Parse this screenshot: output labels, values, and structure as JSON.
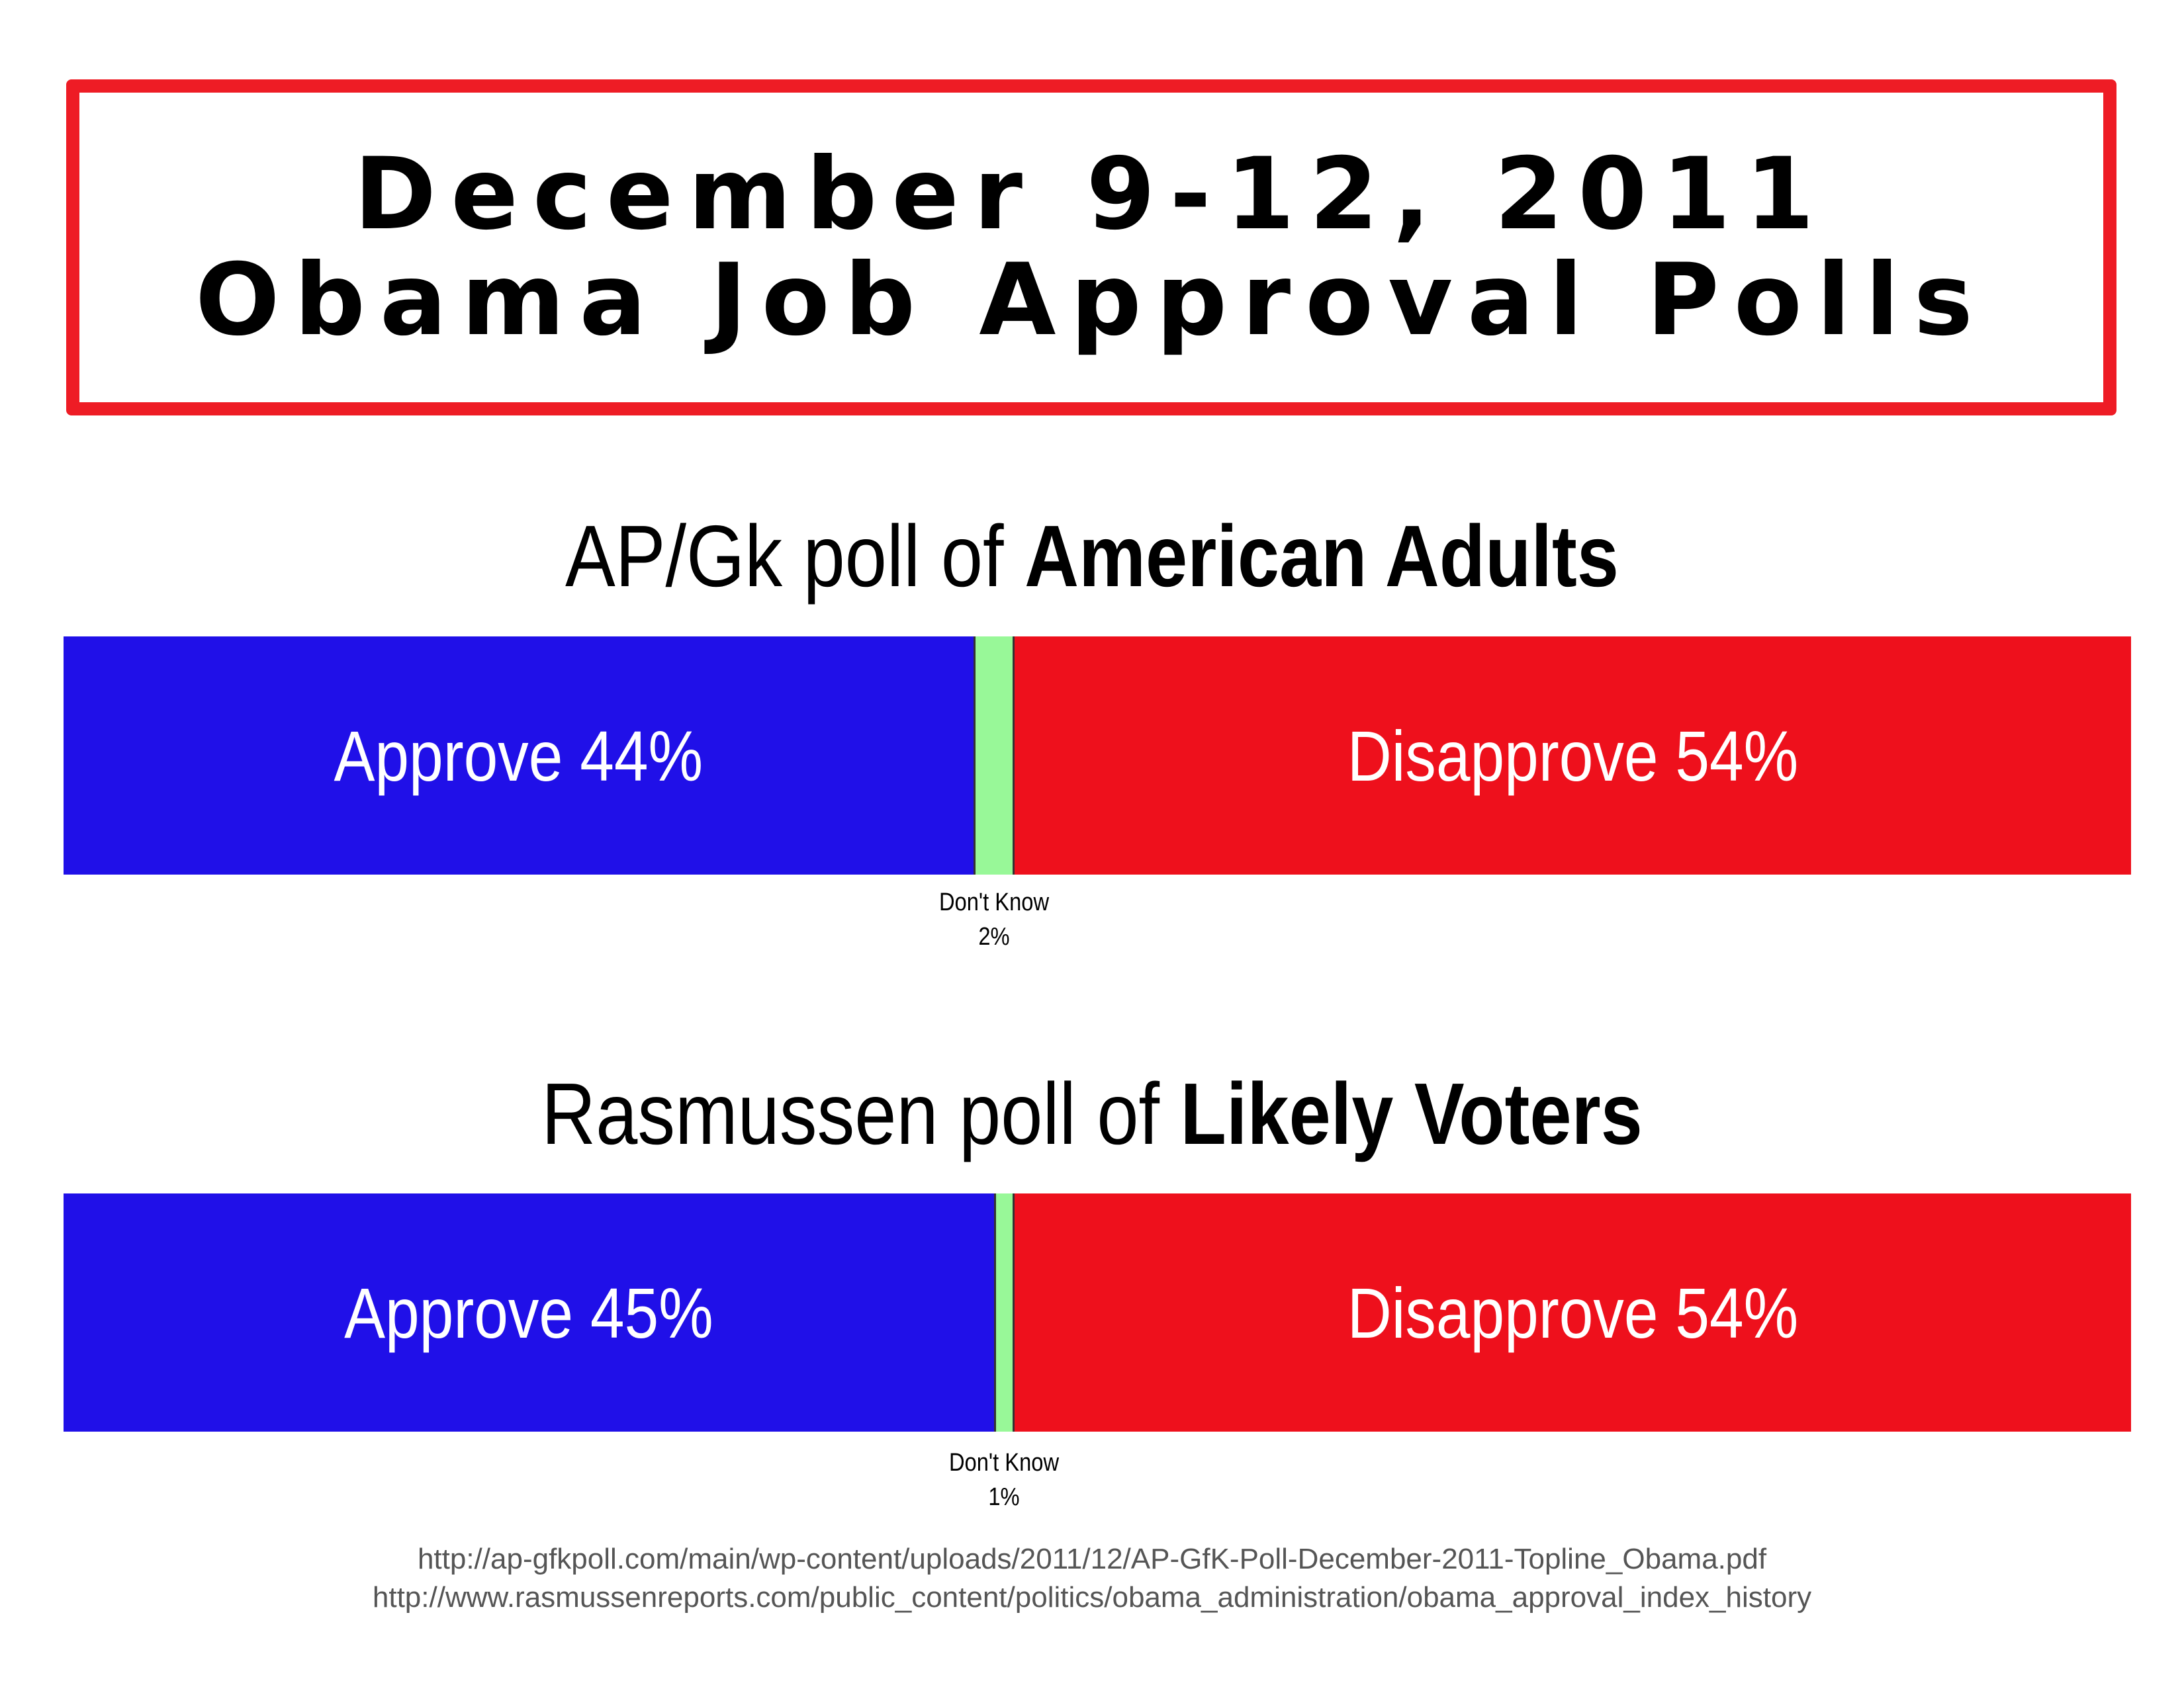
{
  "header": {
    "title_line1": "December 9-12, 2011",
    "title_line2": "Obama Job Approval Polls"
  },
  "colors": {
    "approve": "#2010e8",
    "dont_know": "#98f898",
    "disapprove": "#ee101c",
    "frame": "#ee1c25"
  },
  "chart_data": [
    {
      "type": "bar",
      "orientation": "horizontal-stacked",
      "title_regular": "AP/Gk poll of ",
      "title_bold": "American Adults",
      "segments": [
        {
          "label": "Approve 44%",
          "category": "Approve",
          "value": 44
        },
        {
          "label_line1": "Don't Know",
          "label_line2": "2%",
          "category": "Don't Know",
          "value": 2
        },
        {
          "label": "Disapprove 54%",
          "category": "Disapprove",
          "value": 54
        }
      ]
    },
    {
      "type": "bar",
      "orientation": "horizontal-stacked",
      "title_regular": "Rasmussen poll of ",
      "title_bold": "Likely Voters",
      "segments": [
        {
          "label": "Approve 45%",
          "category": "Approve",
          "value": 45
        },
        {
          "label_line1": "Don't Know",
          "label_line2": "1%",
          "category": "Don't Know",
          "value": 1
        },
        {
          "label": "Disapprove 54%",
          "category": "Disapprove",
          "value": 54
        }
      ]
    }
  ],
  "sources": {
    "line1": "http://ap-gfkpoll.com/main/wp-content/uploads/2011/12/AP-GfK-Poll-December-2011-Topline_Obama.pdf",
    "line2": "http://www.rasmussenreports.com/public_content/politics/obama_administration/obama_approval_index_history"
  }
}
